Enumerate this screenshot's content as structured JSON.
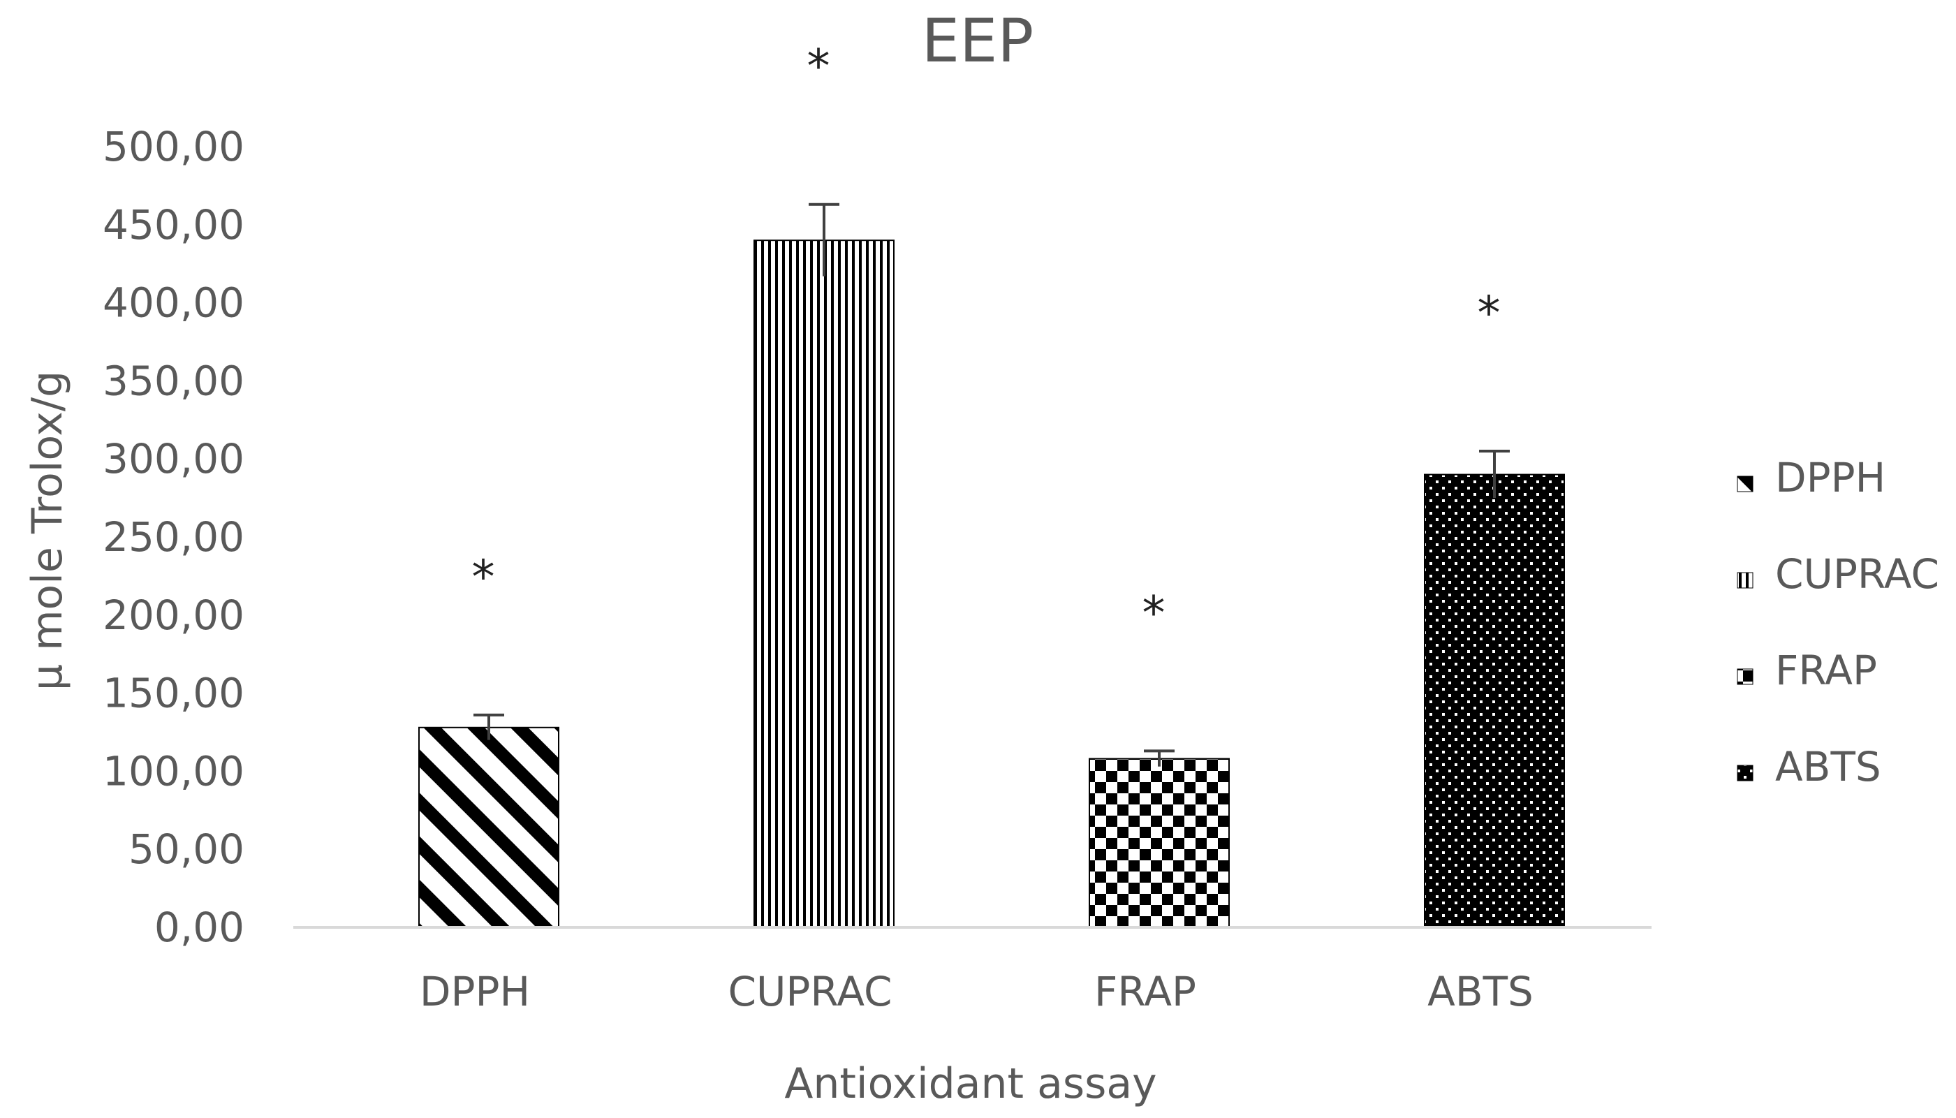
{
  "chart_data": {
    "type": "bar",
    "title": "EEP",
    "xlabel": "Antioxidant assay",
    "ylabel": "µ mole Trolox/g",
    "categories": [
      "DPPH",
      "CUPRAC",
      "FRAP",
      "ABTS"
    ],
    "values": [
      128,
      440,
      108,
      290
    ],
    "errors": [
      8,
      23,
      5,
      15
    ],
    "annotations": [
      "*",
      "*",
      "*",
      "*"
    ],
    "ylim": [
      0,
      500
    ],
    "yticks": [
      "0,00",
      "50,00",
      "100,00",
      "150,00",
      "200,00",
      "250,00",
      "300,00",
      "350,00",
      "400,00",
      "450,00",
      "500,00"
    ],
    "patterns": [
      "diagonal-stripes",
      "vertical-stripes",
      "checkerboard",
      "dots-on-black"
    ],
    "legend": {
      "position": "right",
      "entries": [
        "DPPH",
        "CUPRAC",
        "FRAP",
        "ABTS"
      ]
    },
    "grid": false,
    "colors": {
      "bar": "#000000",
      "text": "#595959",
      "axis": "#d9d9d9"
    }
  }
}
